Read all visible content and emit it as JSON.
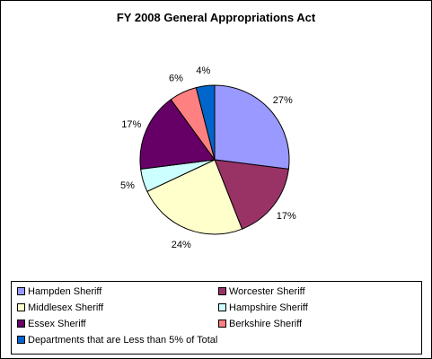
{
  "chart_data": {
    "type": "pie",
    "title": "FY 2008 General Appropriations Act",
    "start_angle_deg": 0,
    "direction": "clockwise",
    "legend_position": "bottom",
    "slices": [
      {
        "name": "Hampden Sheriff",
        "value": 27,
        "label": "27%",
        "color": "#9999FF"
      },
      {
        "name": "Worcester Sheriff",
        "value": 17,
        "label": "17%",
        "color": "#993366"
      },
      {
        "name": "Middlesex Sheriff",
        "value": 24,
        "label": "24%",
        "color": "#FFFFCC"
      },
      {
        "name": "Hampshire Sheriff",
        "value": 5,
        "label": "5%",
        "color": "#CCFFFF"
      },
      {
        "name": "Essex Sheriff",
        "value": 17,
        "label": "17%",
        "color": "#660066"
      },
      {
        "name": "Berkshire Sheriff",
        "value": 6,
        "label": "6%",
        "color": "#FF8080"
      },
      {
        "name": "Departments that are Less than 5% of Total",
        "value": 4,
        "label": "4%",
        "color": "#0066CC"
      }
    ]
  }
}
